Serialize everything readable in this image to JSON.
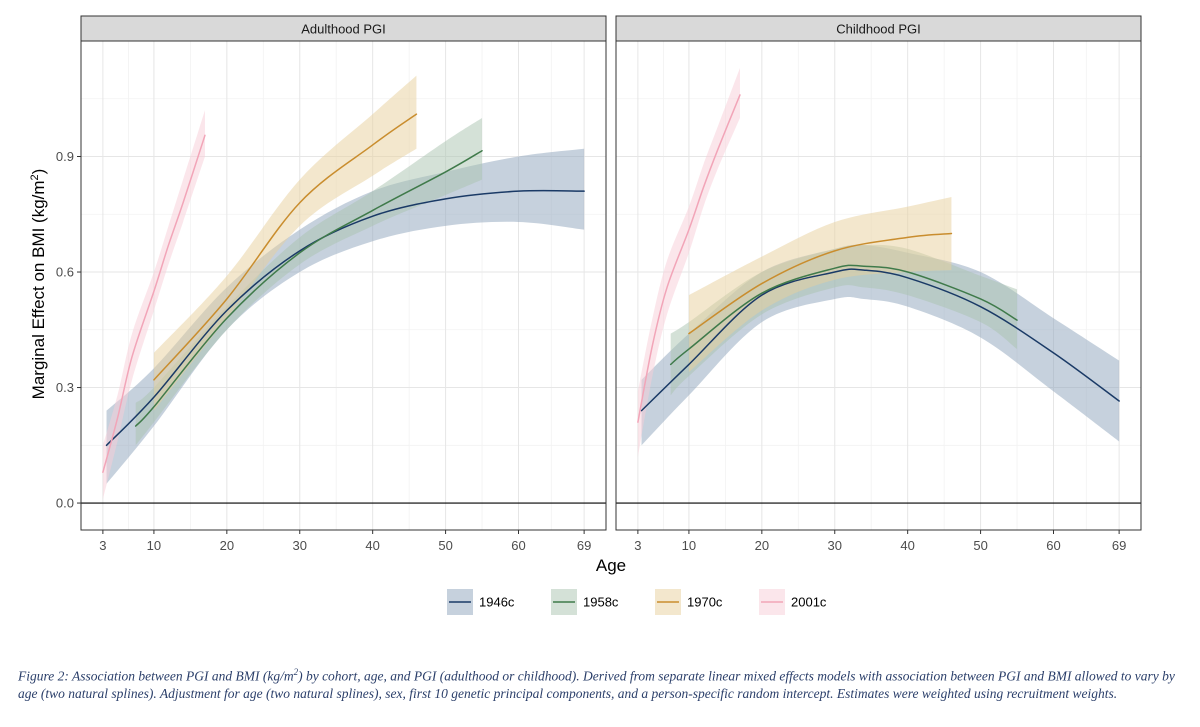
{
  "chart_data": {
    "type": "line",
    "ylabel_main": "Marginal Effect on BMI (kg/m",
    "ylabel_sup": "2",
    "ylabel_end": ")",
    "xlabel": "Age",
    "xticks": [
      3,
      10,
      20,
      30,
      40,
      50,
      60,
      69
    ],
    "yticks": [
      0.0,
      0.3,
      0.6,
      0.9
    ],
    "ytick_labels": [
      "0.0",
      "0.3",
      "0.6",
      "0.9"
    ],
    "xlim": [
      0,
      72
    ],
    "ylim": [
      -0.07,
      1.2
    ],
    "reference_line_y": 0,
    "colors": {
      "1946c": "#1a3a66",
      "1958c": "#3f7a4a",
      "1970c": "#c98d2e",
      "2001c": "#f2a5b8"
    },
    "ribbon_colors": {
      "1946c": "#8ea3bc",
      "1958c": "#a9c4b0",
      "1970c": "#e8cf9c",
      "2001c": "#f8cdd8"
    },
    "legend": [
      "1946c",
      "1958c",
      "1970c",
      "2001c"
    ],
    "panels": [
      {
        "title": "Adulthood PGI",
        "series": [
          {
            "name": "1946c",
            "x": [
              3.5,
              10,
              20,
              30,
              40,
              50,
              60,
              69
            ],
            "y": [
              0.15,
              0.275,
              0.5,
              0.655,
              0.745,
              0.79,
              0.81,
              0.81
            ],
            "lower": [
              0.05,
              0.2,
              0.45,
              0.6,
              0.68,
              0.72,
              0.73,
              0.71
            ],
            "upper": [
              0.24,
              0.35,
              0.56,
              0.71,
              0.81,
              0.86,
              0.9,
              0.92
            ]
          },
          {
            "name": "1958c",
            "x": [
              7.5,
              10,
              20,
              30,
              40,
              50,
              55
            ],
            "y": [
              0.2,
              0.25,
              0.48,
              0.65,
              0.76,
              0.86,
              0.915
            ],
            "lower": [
              0.15,
              0.21,
              0.45,
              0.62,
              0.72,
              0.8,
              0.84
            ],
            "upper": [
              0.26,
              0.3,
              0.51,
              0.69,
              0.81,
              0.94,
              1.0
            ]
          },
          {
            "name": "1970c",
            "x": [
              10,
              20,
              30,
              40,
              46
            ],
            "y": [
              0.32,
              0.53,
              0.78,
              0.93,
              1.01
            ],
            "lower": [
              0.24,
              0.48,
              0.72,
              0.85,
              0.92
            ],
            "upper": [
              0.39,
              0.59,
              0.84,
              1.01,
              1.11
            ]
          },
          {
            "name": "2001c",
            "x": [
              3,
              5,
              7,
              10,
              12,
              14,
              17
            ],
            "y": [
              0.08,
              0.22,
              0.38,
              0.55,
              0.67,
              0.78,
              0.955
            ],
            "lower": [
              0.01,
              0.16,
              0.32,
              0.5,
              0.62,
              0.73,
              0.9
            ],
            "upper": [
              0.15,
              0.28,
              0.44,
              0.6,
              0.72,
              0.84,
              1.02
            ]
          }
        ]
      },
      {
        "title": "Childhood PGI",
        "series": [
          {
            "name": "1946c",
            "x": [
              3.5,
              10,
              20,
              30,
              34,
              40,
              50,
              60,
              69
            ],
            "y": [
              0.24,
              0.36,
              0.54,
              0.6,
              0.605,
              0.585,
              0.51,
              0.39,
              0.265
            ],
            "lower": [
              0.15,
              0.28,
              0.47,
              0.53,
              0.53,
              0.51,
              0.43,
              0.29,
              0.16
            ],
            "upper": [
              0.32,
              0.44,
              0.6,
              0.66,
              0.67,
              0.65,
              0.6,
              0.48,
              0.37
            ]
          },
          {
            "name": "1958c",
            "x": [
              7.5,
              10,
              20,
              30,
              34,
              40,
              50,
              55
            ],
            "y": [
              0.36,
              0.4,
              0.545,
              0.61,
              0.615,
              0.6,
              0.53,
              0.475
            ],
            "lower": [
              0.28,
              0.33,
              0.49,
              0.56,
              0.56,
              0.54,
              0.47,
              0.4
            ],
            "upper": [
              0.44,
              0.47,
              0.6,
              0.66,
              0.67,
              0.66,
              0.59,
              0.555
            ]
          },
          {
            "name": "1970c",
            "x": [
              10,
              20,
              30,
              40,
              46
            ],
            "y": [
              0.44,
              0.57,
              0.655,
              0.69,
              0.7
            ],
            "lower": [
              0.34,
              0.5,
              0.58,
              0.6,
              0.605
            ],
            "upper": [
              0.54,
              0.64,
              0.73,
              0.77,
              0.795
            ]
          },
          {
            "name": "2001c",
            "x": [
              3,
              5,
              7,
              10,
              12,
              14,
              17
            ],
            "y": [
              0.21,
              0.41,
              0.56,
              0.71,
              0.82,
              0.92,
              1.06
            ],
            "lower": [
              0.12,
              0.33,
              0.49,
              0.65,
              0.77,
              0.87,
              1.0
            ],
            "upper": [
              0.29,
              0.48,
              0.63,
              0.77,
              0.88,
              0.98,
              1.13
            ]
          }
        ]
      }
    ]
  },
  "caption": {
    "label": "Figure 2:",
    "text_a": " Association between PGI and BMI (kg/m",
    "text_sup": "2",
    "text_b": ") by cohort, age, and PGI (adulthood or childhood). Derived from separate linear mixed effects models with association between PGI and BMI allowed to vary by age (two natural splines). Adjustment for age (two natural splines), sex, first 10 genetic principal components, and a person-specific random intercept. Estimates were weighted using recruitment weights."
  }
}
